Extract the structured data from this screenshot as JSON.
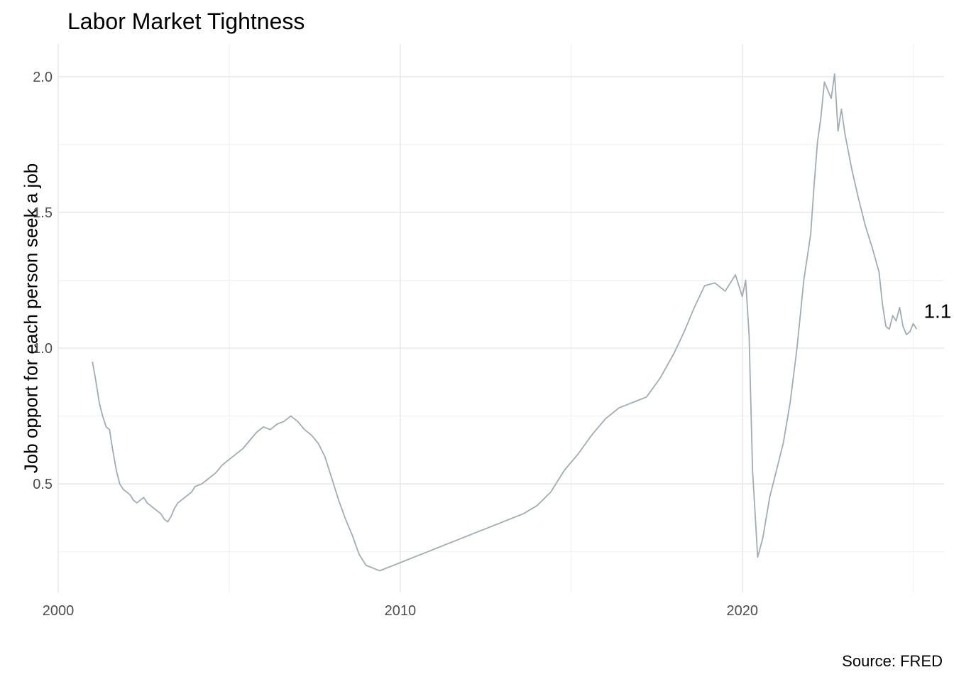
{
  "chart_data": {
    "type": "line",
    "title": "Labor Market Tightness",
    "xlabel": "",
    "ylabel": "Job opport for each person seek a job",
    "caption": "Source: FRED",
    "end_label": "1.1",
    "xlim": [
      2000,
      2025.9
    ],
    "ylim": [
      0.1,
      2.12
    ],
    "x_ticks": [
      2000,
      2010,
      2020
    ],
    "x_tick_labels": [
      "2000",
      "2010",
      "2020"
    ],
    "y_ticks": [
      0.5,
      1.0,
      1.5,
      2.0
    ],
    "y_tick_labels": [
      "0.5",
      "1.0",
      "1.5",
      "2.0"
    ],
    "grid": true,
    "colors": {
      "line": "#a3acb4",
      "grid_major": "#e6e6e6",
      "grid_minor": "#f0f0f0",
      "tick_text": "#4d4d4d"
    },
    "series": [
      {
        "x": [
          2001.0,
          2001.1,
          2001.2,
          2001.3,
          2001.4,
          2001.5,
          2001.6,
          2001.7,
          2001.8,
          2001.9,
          2002.0,
          2002.1,
          2002.2,
          2002.3,
          2002.4,
          2002.5,
          2002.6,
          2002.7,
          2002.8,
          2002.9,
          2003.0,
          2003.1,
          2003.2,
          2003.3,
          2003.4,
          2003.5,
          2003.6,
          2003.7,
          2003.8,
          2003.9,
          2004.0,
          2004.2,
          2004.4,
          2004.6,
          2004.8,
          2005.0,
          2005.2,
          2005.4,
          2005.6,
          2005.8,
          2006.0,
          2006.2,
          2006.4,
          2006.6,
          2006.8,
          2007.0,
          2007.2,
          2007.4,
          2007.6,
          2007.8,
          2008.0,
          2008.2,
          2008.4,
          2008.6,
          2008.8,
          2009.0,
          2009.2,
          2009.4,
          2009.6,
          2009.8,
          2010.0,
          2010.4,
          2010.8,
          2011.2,
          2011.6,
          2012.0,
          2012.4,
          2012.8,
          2013.2,
          2013.6,
          2014.0,
          2014.4,
          2014.8,
          2015.2,
          2015.6,
          2016.0,
          2016.4,
          2016.8,
          2017.2,
          2017.6,
          2018.0,
          2018.3,
          2018.6,
          2018.9,
          2019.2,
          2019.5,
          2019.8,
          2020.0,
          2020.1,
          2020.2,
          2020.3,
          2020.45,
          2020.6,
          2020.8,
          2021.0,
          2021.2,
          2021.4,
          2021.6,
          2021.8,
          2022.0,
          2022.1,
          2022.2,
          2022.3,
          2022.4,
          2022.5,
          2022.6,
          2022.7,
          2022.8,
          2022.9,
          2023.0,
          2023.2,
          2023.4,
          2023.6,
          2023.8,
          2024.0,
          2024.1,
          2024.2,
          2024.3,
          2024.4,
          2024.5,
          2024.6,
          2024.7,
          2024.8,
          2024.9,
          2025.0,
          2025.1
        ],
        "y": [
          0.95,
          0.88,
          0.8,
          0.75,
          0.71,
          0.7,
          0.62,
          0.55,
          0.5,
          0.48,
          0.47,
          0.46,
          0.44,
          0.43,
          0.44,
          0.45,
          0.43,
          0.42,
          0.41,
          0.4,
          0.39,
          0.37,
          0.36,
          0.38,
          0.41,
          0.43,
          0.44,
          0.45,
          0.46,
          0.47,
          0.49,
          0.5,
          0.52,
          0.54,
          0.57,
          0.59,
          0.61,
          0.63,
          0.66,
          0.69,
          0.71,
          0.7,
          0.72,
          0.73,
          0.75,
          0.73,
          0.7,
          0.68,
          0.65,
          0.6,
          0.52,
          0.44,
          0.37,
          0.31,
          0.24,
          0.2,
          0.19,
          0.18,
          0.19,
          0.2,
          0.21,
          0.23,
          0.25,
          0.27,
          0.29,
          0.31,
          0.33,
          0.35,
          0.37,
          0.39,
          0.42,
          0.47,
          0.55,
          0.61,
          0.68,
          0.74,
          0.78,
          0.8,
          0.82,
          0.89,
          0.98,
          1.06,
          1.15,
          1.23,
          1.24,
          1.21,
          1.27,
          1.19,
          1.25,
          1.05,
          0.55,
          0.23,
          0.3,
          0.45,
          0.55,
          0.65,
          0.8,
          1.0,
          1.25,
          1.42,
          1.6,
          1.76,
          1.85,
          1.98,
          1.95,
          1.92,
          2.01,
          1.8,
          1.88,
          1.79,
          1.66,
          1.55,
          1.45,
          1.37,
          1.28,
          1.16,
          1.08,
          1.07,
          1.12,
          1.1,
          1.15,
          1.08,
          1.05,
          1.06,
          1.09,
          1.07
        ]
      }
    ]
  }
}
